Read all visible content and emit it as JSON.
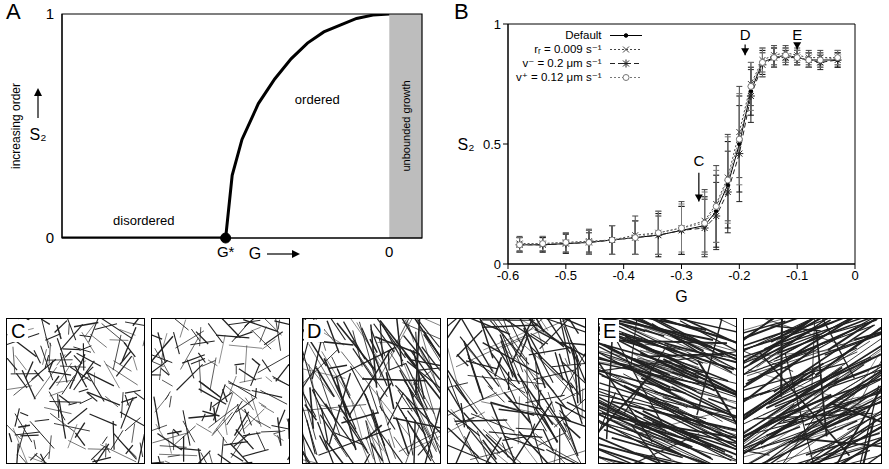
{
  "chart_data": [
    {
      "panel": "A",
      "type": "line",
      "x_label": "G",
      "y_label": "S₂",
      "y_label_note": "increasing order",
      "xlim": [
        -1,
        0.1
      ],
      "xticks": [
        {
          "value": -0.5,
          "label": "G*"
        },
        0
      ],
      "ylim": [
        0,
        1
      ],
      "yticks": [
        0,
        1
      ],
      "x": [
        -1,
        -0.5,
        -0.48,
        -0.45,
        -0.4,
        -0.35,
        -0.3,
        -0.25,
        -0.2,
        -0.15,
        -0.1,
        -0.05,
        0
      ],
      "values": [
        0,
        0,
        0.28,
        0.44,
        0.6,
        0.71,
        0.8,
        0.87,
        0.92,
        0.95,
        0.98,
        0.995,
        1
      ],
      "color": "#000000",
      "critical_point": {
        "x": -0.5,
        "y": 0
      },
      "shaded": {
        "x": [
          0,
          0.1
        ],
        "label": "unbounded growth",
        "color": "#bdbdbd"
      },
      "annotations": [
        {
          "text": "disordered",
          "x": -0.75,
          "y": 0.08
        },
        {
          "text": "ordered",
          "x": -0.22,
          "y": 0.62
        }
      ]
    },
    {
      "panel": "B",
      "type": "line",
      "x_label": "G",
      "y_label": "S₂",
      "xlim": [
        -0.6,
        0
      ],
      "xticks": [
        -0.6,
        -0.5,
        -0.4,
        -0.3,
        -0.2,
        -0.1,
        0
      ],
      "ylim": [
        0,
        1
      ],
      "yticks": [
        0,
        0.5,
        1
      ],
      "legend": "upper left",
      "x": [
        -0.58,
        -0.54,
        -0.5,
        -0.46,
        -0.42,
        -0.38,
        -0.34,
        -0.3,
        -0.26,
        -0.24,
        -0.22,
        -0.2,
        -0.18,
        -0.16,
        -0.14,
        -0.12,
        -0.1,
        -0.08,
        -0.06,
        -0.03
      ],
      "series": [
        {
          "name": "Default",
          "color": "#000000",
          "line_style": "solid",
          "marker": "dot",
          "values": [
            0.08,
            0.08,
            0.085,
            0.09,
            0.1,
            0.11,
            0.12,
            0.14,
            0.16,
            0.22,
            0.33,
            0.5,
            0.72,
            0.84,
            0.86,
            0.87,
            0.86,
            0.85,
            0.85,
            0.85
          ],
          "errors": [
            0.03,
            0.03,
            0.04,
            0.05,
            0.06,
            0.07,
            0.09,
            0.1,
            0.12,
            0.15,
            0.18,
            0.2,
            0.1,
            0.05,
            0.04,
            0.03,
            0.03,
            0.03,
            0.03,
            0.03
          ]
        },
        {
          "name": "rᵣ = 0.009 s⁻¹",
          "color": "#444444",
          "line_style": "dotted",
          "marker": "x",
          "values": [
            0.085,
            0.085,
            0.09,
            0.095,
            0.1,
            0.12,
            0.13,
            0.15,
            0.18,
            0.25,
            0.36,
            0.55,
            0.75,
            0.85,
            0.87,
            0.88,
            0.87,
            0.86,
            0.86,
            0.86
          ],
          "errors": [
            0.03,
            0.03,
            0.04,
            0.05,
            0.06,
            0.08,
            0.09,
            0.11,
            0.13,
            0.16,
            0.18,
            0.19,
            0.09,
            0.05,
            0.04,
            0.03,
            0.03,
            0.03,
            0.03,
            0.03
          ]
        },
        {
          "name": "v⁻ = 0.2 μm s⁻¹",
          "color": "#222222",
          "line_style": "dashed",
          "marker": "star",
          "values": [
            0.08,
            0.08,
            0.085,
            0.09,
            0.1,
            0.11,
            0.12,
            0.14,
            0.15,
            0.2,
            0.3,
            0.46,
            0.7,
            0.83,
            0.86,
            0.86,
            0.86,
            0.85,
            0.84,
            0.85
          ],
          "errors": [
            0.03,
            0.03,
            0.04,
            0.04,
            0.06,
            0.07,
            0.08,
            0.1,
            0.12,
            0.14,
            0.17,
            0.2,
            0.11,
            0.05,
            0.04,
            0.03,
            0.03,
            0.03,
            0.03,
            0.03
          ]
        },
        {
          "name": "v⁺ = 0.12 μm s⁻¹",
          "color": "#777777",
          "line_style": "dotted",
          "marker": "circle",
          "values": [
            0.08,
            0.085,
            0.09,
            0.09,
            0.1,
            0.11,
            0.13,
            0.15,
            0.17,
            0.24,
            0.35,
            0.52,
            0.74,
            0.84,
            0.86,
            0.87,
            0.86,
            0.85,
            0.85,
            0.86
          ],
          "errors": [
            0.03,
            0.03,
            0.04,
            0.05,
            0.06,
            0.07,
            0.09,
            0.1,
            0.13,
            0.15,
            0.18,
            0.19,
            0.1,
            0.06,
            0.04,
            0.03,
            0.03,
            0.03,
            0.03,
            0.03
          ]
        }
      ],
      "annotations": [
        {
          "text": "C",
          "x": -0.27,
          "y": 0.43,
          "arrow_from": 0.38,
          "arrow_to": 0.26
        },
        {
          "text": "D",
          "x": -0.19,
          "y": 0.955,
          "arrow_from": 0.915,
          "arrow_to": 0.87
        },
        {
          "text": "E",
          "x": -0.1,
          "y": 0.955,
          "arrow_from": 0.915,
          "arrow_to": 0.895
        }
      ]
    }
  ],
  "images": [
    {
      "label": "C"
    },
    {
      "label": "D"
    },
    {
      "label": "E"
    }
  ]
}
